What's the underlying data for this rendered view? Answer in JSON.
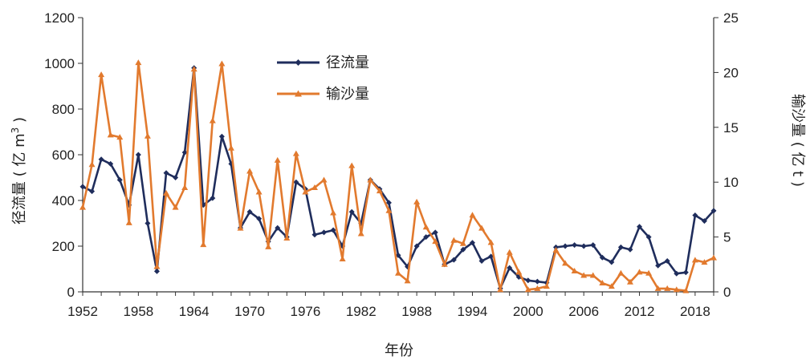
{
  "chart_data": {
    "type": "line",
    "title": "",
    "xlabel": "年份",
    "ylabel_left": "径流量 ( 亿 m³ )",
    "ylabel_left_main": "径流量 ( 亿 m",
    "ylabel_left_sup": "3",
    "ylabel_left_end": " )",
    "ylabel_right": "输沙量 ( 亿 t )",
    "xlim": [
      1952,
      2020
    ],
    "ylim_left": [
      0,
      1200
    ],
    "ylim_right": [
      0,
      25
    ],
    "x_ticks": [
      "1952",
      "1958",
      "1964",
      "1970",
      "1976",
      "1982",
      "1988",
      "1994",
      "2000",
      "2006",
      "2012",
      "2018"
    ],
    "y_ticks_left": [
      "0",
      "200",
      "400",
      "600",
      "800",
      "1000",
      "1200"
    ],
    "y_ticks_right": [
      "0",
      "5",
      "10",
      "15",
      "20",
      "25"
    ],
    "legend_position": "top-center",
    "x": [
      1952,
      1953,
      1954,
      1955,
      1956,
      1957,
      1958,
      1959,
      1960,
      1961,
      1962,
      1963,
      1964,
      1965,
      1966,
      1967,
      1968,
      1969,
      1970,
      1971,
      1972,
      1973,
      1974,
      1975,
      1976,
      1977,
      1978,
      1979,
      1980,
      1981,
      1982,
      1983,
      1984,
      1985,
      1986,
      1987,
      1988,
      1989,
      1990,
      1991,
      1992,
      1993,
      1994,
      1995,
      1996,
      1997,
      1998,
      1999,
      2000,
      2001,
      2002,
      2003,
      2004,
      2005,
      2006,
      2007,
      2008,
      2009,
      2010,
      2011,
      2012,
      2013,
      2014,
      2015,
      2016,
      2017,
      2018,
      2019,
      2020
    ],
    "series": [
      {
        "name": "径流量",
        "axis": "left",
        "color": "#1f2d5c",
        "marker": "diamond",
        "values": [
          460,
          440,
          580,
          560,
          490,
          380,
          600,
          300,
          90,
          520,
          500,
          610,
          980,
          380,
          410,
          680,
          560,
          280,
          350,
          320,
          220,
          280,
          240,
          480,
          450,
          250,
          260,
          270,
          200,
          350,
          300,
          490,
          450,
          390,
          160,
          110,
          200,
          240,
          260,
          120,
          140,
          185,
          215,
          135,
          155,
          15,
          105,
          65,
          50,
          45,
          40,
          195,
          200,
          205,
          200,
          205,
          150,
          130,
          195,
          185,
          285,
          240,
          115,
          135,
          80,
          85,
          335,
          310,
          355
        ]
      },
      {
        "name": "输沙量",
        "axis": "right",
        "color": "#e27a2e",
        "marker": "triangle",
        "values": [
          7.7,
          11.6,
          19.8,
          14.3,
          14.1,
          6.3,
          20.9,
          14.2,
          2.3,
          9.0,
          7.7,
          9.5,
          20.3,
          4.3,
          15.6,
          20.8,
          13.1,
          5.8,
          11.0,
          9.1,
          4.1,
          12.0,
          4.9,
          12.6,
          9.1,
          9.5,
          10.2,
          7.2,
          3.0,
          11.5,
          5.3,
          10.2,
          9.2,
          7.4,
          1.7,
          1.0,
          8.2,
          5.9,
          4.6,
          2.5,
          4.7,
          4.4,
          7.0,
          5.8,
          4.5,
          0.2,
          3.6,
          1.8,
          0.2,
          0.3,
          0.5,
          3.8,
          2.6,
          1.9,
          1.5,
          1.5,
          0.8,
          0.5,
          1.7,
          0.9,
          1.8,
          1.7,
          0.3,
          0.3,
          0.2,
          0.1,
          2.9,
          2.7,
          3.1
        ]
      }
    ]
  }
}
